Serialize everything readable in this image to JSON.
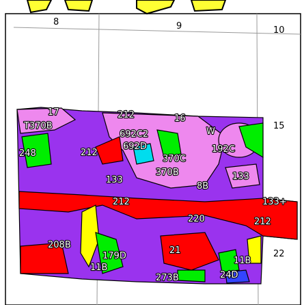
{
  "sections": [
    "8",
    "9",
    "10",
    "15",
    "22"
  ],
  "units": [
    "17",
    "T370B",
    "212",
    "16",
    "248",
    "692C2",
    "692D",
    "W",
    "192C",
    "370C",
    "370B",
    "133",
    "212",
    "8B",
    "133",
    "212",
    "133+",
    "220",
    "212",
    "208B",
    "179D",
    "21",
    "11B",
    "11B",
    "273B",
    "24D"
  ]
}
